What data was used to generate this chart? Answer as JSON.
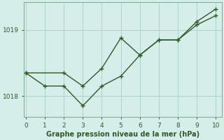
{
  "line1_x": [
    0,
    1,
    2,
    3,
    4,
    5,
    6,
    7,
    8,
    9,
    10
  ],
  "line1_y": [
    1018.35,
    1018.15,
    1018.15,
    1017.85,
    1018.15,
    1018.3,
    1018.62,
    1018.85,
    1018.85,
    1019.08,
    1019.22
  ],
  "line2_x": [
    0,
    2,
    3,
    4,
    5,
    6,
    7,
    8,
    9,
    10
  ],
  "line2_y": [
    1018.35,
    1018.35,
    1018.15,
    1018.42,
    1018.88,
    1018.62,
    1018.85,
    1018.85,
    1019.13,
    1019.32
  ],
  "line_color": "#2d5a27",
  "bg_color": "#d6eeea",
  "grid_color": "#aad4cc",
  "xlabel": "Graphe pression niveau de la mer (hPa)",
  "xlabel_color": "#2d5a27",
  "tick_color": "#2d5a27",
  "axis_color": "#7aaa90",
  "xlim": [
    -0.1,
    10.3
  ],
  "ylim": [
    1017.68,
    1019.42
  ],
  "yticks": [
    1018,
    1019
  ],
  "xticks": [
    0,
    1,
    2,
    3,
    4,
    5,
    6,
    7,
    8,
    9,
    10
  ],
  "marker": "+",
  "markersize": 4,
  "markeredgewidth": 1.0,
  "linewidth": 1.0,
  "xlabel_fontsize": 7.0,
  "tick_fontsize": 6.5
}
